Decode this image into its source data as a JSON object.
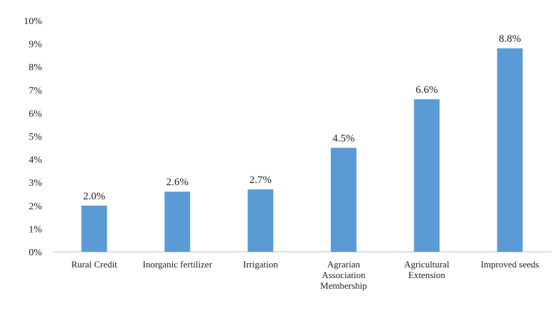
{
  "chart_data": {
    "type": "bar",
    "categories": [
      [
        "Rural Credit"
      ],
      [
        "Inorganic fertilizer"
      ],
      [
        "Irrigation"
      ],
      [
        "Agrarian",
        "Association",
        "Membership"
      ],
      [
        "Agricultural",
        "Extension"
      ],
      [
        "Improved seeds"
      ]
    ],
    "values": [
      2.0,
      2.6,
      2.7,
      4.5,
      6.6,
      8.8
    ],
    "data_labels": [
      "2.0%",
      "2.6%",
      "2.7%",
      "4.5%",
      "6.6%",
      "8.8%"
    ],
    "y_ticks": [
      "0%",
      "1%",
      "2%",
      "3%",
      "4%",
      "5%",
      "6%",
      "7%",
      "8%",
      "9%",
      "10%"
    ],
    "ylim": [
      0,
      10
    ],
    "grid": false,
    "legend": "none",
    "bar_color": "#5b9bd5",
    "axis_color": "#bfbfbf"
  }
}
